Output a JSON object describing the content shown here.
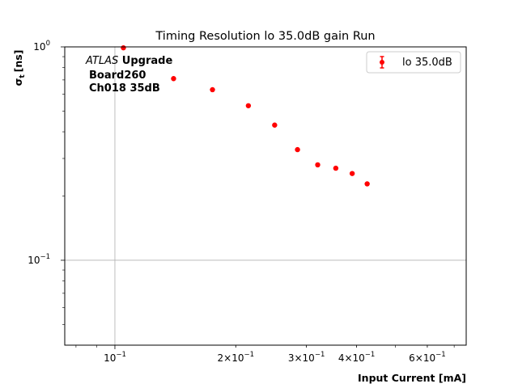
{
  "chart_data": {
    "type": "scatter",
    "title": "Timing Resolution lo 35.0dB gain Run",
    "xlabel": "Input Current [mA]",
    "ylabel_main": "σ",
    "ylabel_sub": "t",
    "ylabel_unit": "[ns]",
    "xscale": "log",
    "yscale": "log",
    "xlim": [
      0.075,
      0.75
    ],
    "ylim": [
      0.04,
      1.0
    ],
    "x_ticks": [
      {
        "value": 0.1,
        "mantissa": "10",
        "exp": "−1"
      },
      {
        "value": 0.2,
        "mantissa": "2×10",
        "exp": "−1"
      },
      {
        "value": 0.3,
        "mantissa": "3×10",
        "exp": "−1"
      },
      {
        "value": 0.4,
        "mantissa": "4×10",
        "exp": "−1"
      },
      {
        "value": 0.6,
        "mantissa": "6×10",
        "exp": "−1"
      }
    ],
    "y_ticks": [
      {
        "value": 1.0,
        "mantissa": "10",
        "exp": "0"
      },
      {
        "value": 0.1,
        "mantissa": "10",
        "exp": "−1"
      }
    ],
    "grid": "major",
    "series": [
      {
        "name": "lo 35.0dB",
        "color": "#ff0000",
        "x": [
          0.105,
          0.14,
          0.175,
          0.215,
          0.25,
          0.285,
          0.32,
          0.355,
          0.39,
          0.425
        ],
        "y": [
          0.99,
          0.71,
          0.63,
          0.53,
          0.43,
          0.33,
          0.28,
          0.27,
          0.255,
          0.228
        ]
      }
    ],
    "legend_position": "top-right",
    "annotation": {
      "atlas": "ATLAS",
      "upgrade": " Upgrade",
      "line2": "Board260",
      "line3": "Ch018 35dB"
    }
  }
}
